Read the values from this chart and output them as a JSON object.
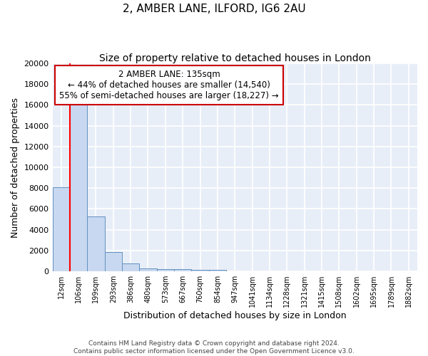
{
  "title1": "2, AMBER LANE, ILFORD, IG6 2AU",
  "title2": "Size of property relative to detached houses in London",
  "xlabel": "Distribution of detached houses by size in London",
  "ylabel": "Number of detached properties",
  "bin_labels": [
    "12sqm",
    "106sqm",
    "199sqm",
    "293sqm",
    "386sqm",
    "480sqm",
    "573sqm",
    "667sqm",
    "760sqm",
    "854sqm",
    "947sqm",
    "1041sqm",
    "1134sqm",
    "1228sqm",
    "1321sqm",
    "1415sqm",
    "1508sqm",
    "1602sqm",
    "1695sqm",
    "1789sqm",
    "1882sqm"
  ],
  "bar_heights": [
    8100,
    16500,
    5300,
    1850,
    750,
    300,
    220,
    180,
    170,
    150,
    0,
    0,
    0,
    0,
    0,
    0,
    0,
    0,
    0,
    0,
    0
  ],
  "bar_color": "#c8d8f0",
  "bar_edge_color": "#6090c0",
  "annotation_title": "2 AMBER LANE: 135sqm",
  "annotation_line1": "← 44% of detached houses are smaller (14,540)",
  "annotation_line2": "55% of semi-detached houses are larger (18,227) →",
  "annotation_box_color": "#ffffff",
  "annotation_box_edge": "#cc0000",
  "footer1": "Contains HM Land Registry data © Crown copyright and database right 2024.",
  "footer2": "Contains public sector information licensed under the Open Government Licence v3.0.",
  "ylim": [
    0,
    20000
  ],
  "yticks": [
    0,
    2000,
    4000,
    6000,
    8000,
    10000,
    12000,
    14000,
    16000,
    18000,
    20000
  ],
  "bg_color": "#e8eef8",
  "grid_color": "#ffffff",
  "title1_fontsize": 11,
  "title2_fontsize": 10
}
